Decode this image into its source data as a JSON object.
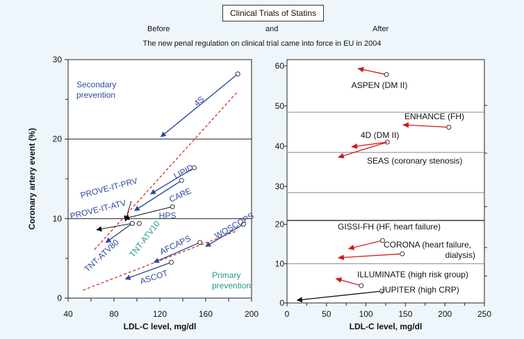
{
  "header": {
    "title": "Clinical Trials of Statins",
    "before": "Before",
    "and": "and",
    "after": "After",
    "subtitle": "The new penal regulation on clinical trial came into force in EU in 2004"
  },
  "colors": {
    "background": "#eef5fb",
    "before_label": "#2f4a9e",
    "primary_label": "#1f9a8a",
    "after_arrow": "#d11a1a",
    "reference_line": "#d11a1a"
  },
  "chart_data": [
    {
      "type": "scatter",
      "panel": "before",
      "xlabel": "LDL-C level, mg/dl",
      "ylabel": "Coronary artery event (%)",
      "xlim": [
        40,
        200
      ],
      "ylim": [
        0,
        30
      ],
      "xticks": [
        "40",
        "80",
        "120",
        "160",
        "200"
      ],
      "yticks": [
        "0",
        "10",
        "20",
        "30"
      ],
      "grid": "horizontal at 20 and 10",
      "region_labels": [
        {
          "text": "Secondary\nprevention",
          "color": "#2f4a9e"
        },
        {
          "text": "Primary\nprevention",
          "color": "#1f9a8a"
        }
      ],
      "trials": [
        {
          "name": "4S",
          "from": [
            188,
            28.2
          ],
          "to": [
            121,
            20.3
          ],
          "color": "#2f4a9e"
        },
        {
          "name": "LIPID",
          "from": [
            150,
            16.4
          ],
          "to": [
            112,
            13.1
          ],
          "color": "#2f4a9e"
        },
        {
          "name": "CARE",
          "from": [
            139,
            14.8
          ],
          "to": [
            98,
            11.0
          ],
          "color": "#2f4a9e"
        },
        {
          "name": "HPS",
          "from": [
            131,
            11.5
          ],
          "to": [
            89,
            10.0
          ],
          "color": "#2f4a9e"
        },
        {
          "name": "PROVE-IT-PRV",
          "from": [
            95,
            12.2
          ],
          "to": [
            90,
            9.7
          ],
          "color": "#2f4a9e"
        },
        {
          "name": "PROVE-IT-ATV",
          "from": [
            96,
            9.4
          ],
          "to": [
            65,
            8.6
          ],
          "color": "#2f4a9e"
        },
        {
          "name": "TNT-ATV80",
          "from": [
            96,
            9.4
          ],
          "to": [
            73,
            7.0
          ],
          "color": "#2f4a9e"
        },
        {
          "name": "TNT-ATV10",
          "from": [
            102,
            9.4
          ],
          "to": null,
          "color": "#1f9a8a"
        },
        {
          "name": "AFCAPS",
          "from": [
            155,
            7.0
          ],
          "to": [
            115,
            4.5
          ],
          "color": "#2f4a9e"
        },
        {
          "name": "ASCOT",
          "from": [
            130,
            4.5
          ],
          "to": [
            90,
            2.4
          ],
          "color": "#2f4a9e"
        },
        {
          "name": "WOSCOPS",
          "from": [
            193,
            9.3
          ],
          "to": [
            160,
            6.5
          ],
          "color": "#2f4a9e"
        }
      ],
      "reference_lines": [
        {
          "from": [
            63,
            6.1
          ],
          "to": [
            188,
            26.0
          ]
        },
        {
          "from": [
            53,
            1.0
          ],
          "to": [
            188,
            8.5
          ]
        }
      ]
    },
    {
      "type": "scatter",
      "panel": "after",
      "xlabel": "LDL-C level, mg/dl",
      "xlim": [
        0,
        250
      ],
      "xticks": [
        "0",
        "50",
        "100",
        "150",
        "200",
        "250"
      ],
      "yticks_upper": [
        "30",
        "40",
        "50",
        "60"
      ],
      "yticks_lower": [
        "0",
        "10",
        "20"
      ],
      "trials": [
        {
          "name": "ASPEN (DM II)",
          "from": [
            126,
            57.3
          ],
          "to": [
            90,
            58.8
          ]
        },
        {
          "name": "ENHANCE (FH)",
          "from": [
            205,
            44.2
          ],
          "to": [
            147,
            44.8
          ]
        },
        {
          "name": "4D (DM II)",
          "from": [
            127,
            40.5
          ],
          "to": [
            82,
            39.3
          ]
        },
        {
          "name": "SEAS (coronary stenosis)",
          "from": [
            127,
            40.5
          ],
          "to": [
            65,
            36.7
          ]
        },
        {
          "name": "GISSI-FH (HF, heart failure)",
          "from": [
            121,
            15.9
          ],
          "to": [
            78,
            13.8
          ]
        },
        {
          "name": "CORONA (heart failure, dialysis)",
          "from": [
            146,
            12.5
          ],
          "to": [
            65,
            11.5
          ]
        },
        {
          "name": "ILLUMINATE (high risk group)",
          "from": [
            94,
            4.4
          ],
          "to": [
            62,
            6.2
          ]
        },
        {
          "name": "JUPITER (high CRP)",
          "from": [
            120,
            3.0
          ],
          "to": [
            13,
            0.7
          ]
        }
      ]
    }
  ]
}
